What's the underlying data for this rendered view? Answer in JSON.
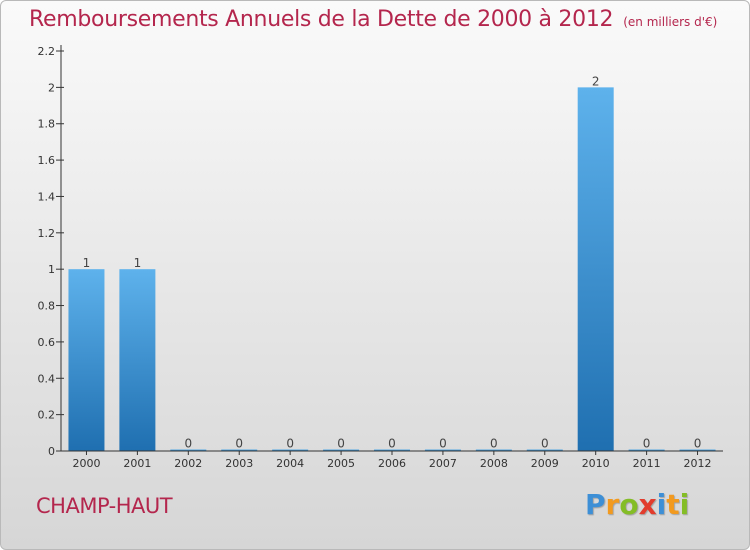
{
  "title": "Remboursements Annuels de la Dette de 2000 à 2012",
  "unit_note": "(en milliers d'€)",
  "place": "CHAMP-HAUT",
  "logo": {
    "letters": [
      "P",
      "r",
      "o",
      "x",
      "i",
      "t",
      "i"
    ],
    "colors": [
      "#3d8fd6",
      "#f29a1f",
      "#84bd26",
      "#e23c2d",
      "#3d8fd6",
      "#f29a1f",
      "#84bd26"
    ]
  },
  "colors": {
    "title": "#b4264d",
    "bar_top": "#5eb2ec",
    "bar_bottom": "#1f6fb0",
    "axis": "#333333"
  },
  "chart_data": {
    "type": "bar",
    "categories": [
      "2000",
      "2001",
      "2002",
      "2003",
      "2004",
      "2005",
      "2006",
      "2007",
      "2008",
      "2009",
      "2010",
      "2011",
      "2012"
    ],
    "values": [
      1,
      1,
      0,
      0,
      0,
      0,
      0,
      0,
      0,
      0,
      2,
      0,
      0
    ],
    "value_labels": [
      "1",
      "1",
      "0",
      "0",
      "0",
      "0",
      "0",
      "0",
      "0",
      "0",
      "2",
      "0",
      "0"
    ],
    "ylim": [
      0,
      2.2
    ],
    "yticks": [
      0,
      0.2,
      0.4,
      0.6,
      0.8,
      1,
      1.2,
      1.4,
      1.6,
      1.8,
      2,
      2.2
    ],
    "ytick_labels": [
      "0",
      "0.2",
      "0.4",
      "0.6",
      "0.8",
      "1",
      "1.2",
      "1.4",
      "1.6",
      "1.8",
      "2",
      "2.2"
    ],
    "grid": false,
    "legend": "none"
  }
}
